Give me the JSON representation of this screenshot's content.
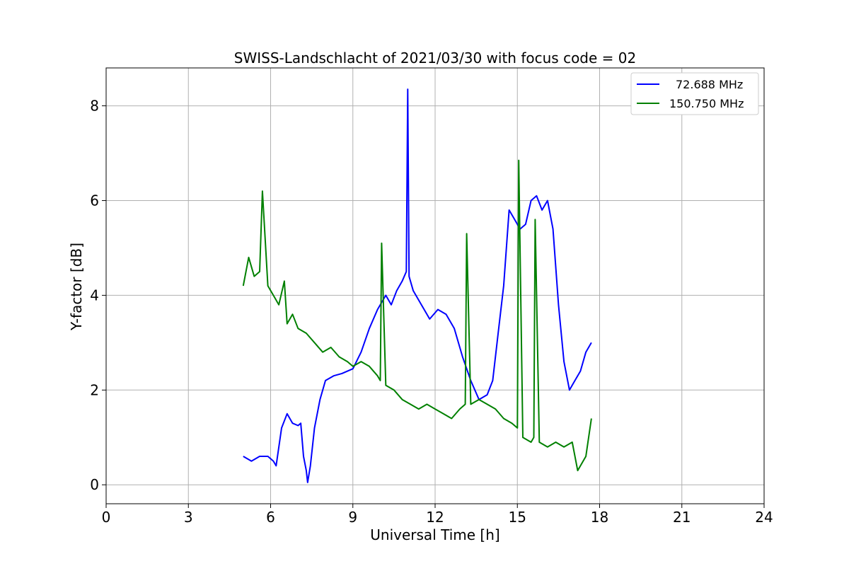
{
  "chart_data": {
    "type": "line",
    "title": "SWISS-Landschlacht of 2021/03/30 with focus code = 02",
    "xlabel": "Universal Time [h]",
    "ylabel": "Y-factor [dB]",
    "xlim": [
      0,
      24
    ],
    "ylim": [
      -0.4,
      8.8
    ],
    "xticks": [
      0,
      3,
      6,
      9,
      12,
      15,
      18,
      21,
      24
    ],
    "yticks": [
      0,
      2,
      4,
      6,
      8
    ],
    "grid": true,
    "legend": "top-right",
    "series": [
      {
        "name": "72.688 MHz",
        "color": "#0000ff",
        "x": [
          5.0,
          5.3,
          5.6,
          5.9,
          6.1,
          6.2,
          6.4,
          6.6,
          6.8,
          7.0,
          7.1,
          7.2,
          7.3,
          7.35,
          7.45,
          7.6,
          7.8,
          8.0,
          8.3,
          8.6,
          9.0,
          9.3,
          9.6,
          9.9,
          10.2,
          10.4,
          10.6,
          10.8,
          10.95,
          11.0,
          11.05,
          11.2,
          11.5,
          11.8,
          12.1,
          12.4,
          12.7,
          13.0,
          13.3,
          13.6,
          13.9,
          14.1,
          14.3,
          14.5,
          14.7,
          14.9,
          15.1,
          15.3,
          15.5,
          15.7,
          15.9,
          16.1,
          16.3,
          16.5,
          16.7,
          16.9,
          17.1,
          17.3,
          17.5,
          17.7
        ],
        "y": [
          0.6,
          0.5,
          0.6,
          0.6,
          0.5,
          0.4,
          1.2,
          1.5,
          1.3,
          1.25,
          1.3,
          0.6,
          0.3,
          0.05,
          0.4,
          1.2,
          1.8,
          2.2,
          2.3,
          2.35,
          2.45,
          2.8,
          3.3,
          3.7,
          4.0,
          3.8,
          4.1,
          4.3,
          4.5,
          8.35,
          4.4,
          4.1,
          3.8,
          3.5,
          3.7,
          3.6,
          3.3,
          2.7,
          2.2,
          1.8,
          1.9,
          2.2,
          3.2,
          4.2,
          5.8,
          5.6,
          5.4,
          5.5,
          6.0,
          6.1,
          5.8,
          6.0,
          5.4,
          3.8,
          2.6,
          2.0,
          2.2,
          2.4,
          2.8,
          3.0
        ]
      },
      {
        "name": "150.750 MHz",
        "color": "#008000",
        "x": [
          5.0,
          5.2,
          5.4,
          5.6,
          5.7,
          5.9,
          6.1,
          6.3,
          6.5,
          6.6,
          6.8,
          7.0,
          7.3,
          7.6,
          7.9,
          8.2,
          8.5,
          8.8,
          9.0,
          9.3,
          9.6,
          9.9,
          10.0,
          10.05,
          10.2,
          10.5,
          10.8,
          11.1,
          11.4,
          11.7,
          12.0,
          12.3,
          12.6,
          12.9,
          13.1,
          13.15,
          13.3,
          13.6,
          13.9,
          14.2,
          14.5,
          14.8,
          15.0,
          15.05,
          15.2,
          15.5,
          15.6,
          15.65,
          15.8,
          16.1,
          16.4,
          16.7,
          17.0,
          17.2,
          17.3,
          17.5,
          17.7
        ],
        "y": [
          4.2,
          4.8,
          4.4,
          4.5,
          6.2,
          4.2,
          4.0,
          3.8,
          4.3,
          3.4,
          3.6,
          3.3,
          3.2,
          3.0,
          2.8,
          2.9,
          2.7,
          2.6,
          2.5,
          2.6,
          2.5,
          2.3,
          2.2,
          5.1,
          2.1,
          2.0,
          1.8,
          1.7,
          1.6,
          1.7,
          1.6,
          1.5,
          1.4,
          1.6,
          1.7,
          5.3,
          1.7,
          1.8,
          1.7,
          1.6,
          1.4,
          1.3,
          1.2,
          6.85,
          1.0,
          0.9,
          1.0,
          5.6,
          0.9,
          0.8,
          0.9,
          0.8,
          0.9,
          0.3,
          0.4,
          0.6,
          1.4
        ]
      }
    ]
  }
}
